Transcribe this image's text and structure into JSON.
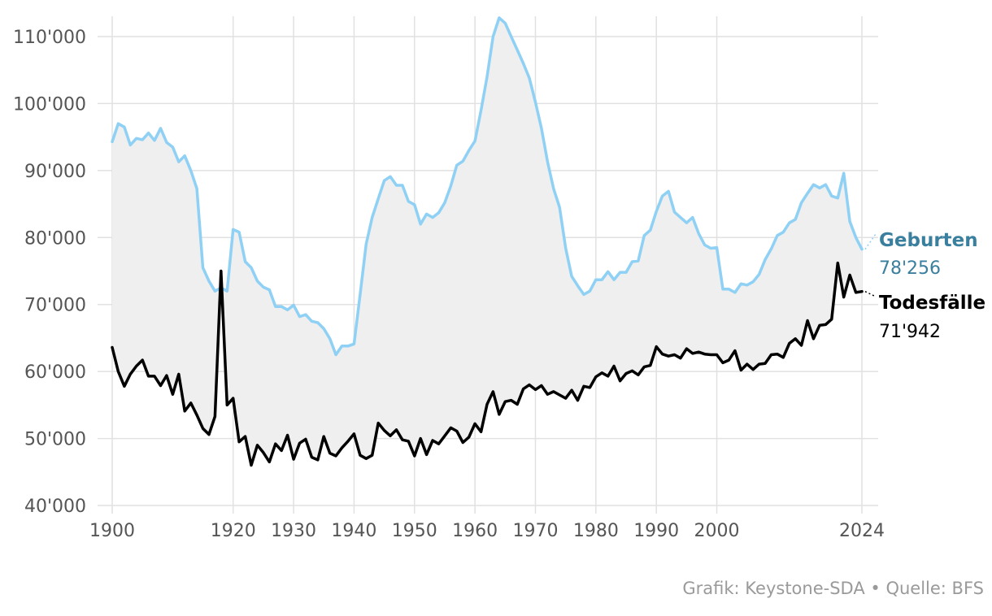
{
  "chart_data": {
    "type": "line",
    "ylim": [
      40000,
      110000
    ],
    "xlim": [
      1900,
      2024
    ],
    "y_ticks": [
      40000,
      50000,
      60000,
      70000,
      80000,
      90000,
      100000,
      110000
    ],
    "y_tick_labels": [
      "40'000",
      "50'000",
      "60'000",
      "70'000",
      "80'000",
      "90'000",
      "100'000",
      "110'000"
    ],
    "x_ticks": [
      1900,
      1920,
      1930,
      1940,
      1950,
      1960,
      1970,
      1980,
      1990,
      2000,
      2024
    ],
    "x_tick_labels": [
      "1900",
      "1920",
      "1930",
      "1940",
      "1950",
      "1960",
      "1970",
      "1980",
      "1990",
      "2000",
      "2024"
    ],
    "grid": true,
    "fill_between_series": true,
    "series": [
      {
        "name": "Geburten",
        "value_label": "78'256",
        "color": "#8fd0f5",
        "label_color": "#3a7f9e",
        "x": [
          1900,
          1901,
          1902,
          1903,
          1904,
          1905,
          1906,
          1907,
          1908,
          1909,
          1910,
          1911,
          1912,
          1913,
          1914,
          1915,
          1916,
          1917,
          1918,
          1919,
          1920,
          1921,
          1922,
          1923,
          1924,
          1925,
          1926,
          1927,
          1928,
          1929,
          1930,
          1931,
          1932,
          1933,
          1934,
          1935,
          1936,
          1937,
          1938,
          1939,
          1940,
          1941,
          1942,
          1943,
          1944,
          1945,
          1946,
          1947,
          1948,
          1949,
          1950,
          1951,
          1952,
          1953,
          1954,
          1955,
          1956,
          1957,
          1958,
          1959,
          1960,
          1961,
          1962,
          1963,
          1964,
          1965,
          1966,
          1967,
          1968,
          1969,
          1970,
          1971,
          1972,
          1973,
          1974,
          1975,
          1976,
          1977,
          1978,
          1979,
          1980,
          1981,
          1982,
          1983,
          1984,
          1985,
          1986,
          1987,
          1988,
          1989,
          1990,
          1991,
          1992,
          1993,
          1994,
          1995,
          1996,
          1997,
          1998,
          1999,
          2000,
          2001,
          2002,
          2003,
          2004,
          2005,
          2006,
          2007,
          2008,
          2009,
          2010,
          2011,
          2012,
          2013,
          2014,
          2015,
          2016,
          2017,
          2018,
          2019,
          2020,
          2021,
          2022,
          2023,
          2024
        ],
        "values": [
          94300,
          97000,
          96500,
          93800,
          94800,
          94600,
          95600,
          94500,
          96300,
          94200,
          93500,
          91300,
          92200,
          90000,
          87300,
          75500,
          73500,
          72000,
          72500,
          72000,
          81200,
          80800,
          76400,
          75500,
          73500,
          72600,
          72200,
          69700,
          69700,
          69200,
          69900,
          68200,
          68500,
          67500,
          67300,
          66400,
          64900,
          62500,
          63800,
          63800,
          64100,
          71500,
          79000,
          83000,
          85800,
          88500,
          89100,
          87800,
          87800,
          85400,
          84900,
          82000,
          83500,
          83000,
          83700,
          85200,
          87700,
          90800,
          91400,
          93000,
          94400,
          99000,
          104000,
          110000,
          112800,
          112000,
          110000,
          108000,
          106000,
          103800,
          100200,
          96300,
          91300,
          87300,
          84500,
          78400,
          74200,
          72800,
          71500,
          72000,
          73700,
          73700,
          74900,
          73700,
          74800,
          74800,
          76400,
          76500,
          80300,
          81100,
          83900,
          86200,
          86900,
          83800,
          83000,
          82200,
          83000,
          80600,
          78900,
          78400,
          78500,
          72300,
          72300,
          71800,
          73100,
          72900,
          73400,
          74500,
          76700,
          78300,
          80300,
          80800,
          82200,
          82700,
          85200,
          86600,
          87900,
          87400,
          87900,
          86200,
          85900,
          89600,
          82400,
          80000,
          78256
        ]
      },
      {
        "name": "Todesfälle",
        "value_label": "71'942",
        "color": "#000000",
        "label_color": "#000000",
        "x": [
          1900,
          1901,
          1902,
          1903,
          1904,
          1905,
          1906,
          1907,
          1908,
          1909,
          1910,
          1911,
          1912,
          1913,
          1914,
          1915,
          1916,
          1917,
          1918,
          1919,
          1920,
          1921,
          1922,
          1923,
          1924,
          1925,
          1926,
          1927,
          1928,
          1929,
          1930,
          1931,
          1932,
          1933,
          1934,
          1935,
          1936,
          1937,
          1938,
          1939,
          1940,
          1941,
          1942,
          1943,
          1944,
          1945,
          1946,
          1947,
          1948,
          1949,
          1950,
          1951,
          1952,
          1953,
          1954,
          1955,
          1956,
          1957,
          1958,
          1959,
          1960,
          1961,
          1962,
          1963,
          1964,
          1965,
          1966,
          1967,
          1968,
          1969,
          1970,
          1971,
          1972,
          1973,
          1974,
          1975,
          1976,
          1977,
          1978,
          1979,
          1980,
          1981,
          1982,
          1983,
          1984,
          1985,
          1986,
          1987,
          1988,
          1989,
          1990,
          1991,
          1992,
          1993,
          1994,
          1995,
          1996,
          1997,
          1998,
          1999,
          2000,
          2001,
          2002,
          2003,
          2004,
          2005,
          2006,
          2007,
          2008,
          2009,
          2010,
          2011,
          2012,
          2013,
          2014,
          2015,
          2016,
          2017,
          2018,
          2019,
          2020,
          2021,
          2022,
          2023,
          2024
        ],
        "values": [
          63600,
          60000,
          57800,
          59600,
          60800,
          61700,
          59300,
          59300,
          57900,
          59400,
          56600,
          59600,
          54100,
          55300,
          53500,
          51500,
          50600,
          53300,
          75000,
          55000,
          56000,
          49500,
          50300,
          46000,
          49000,
          47900,
          46500,
          49200,
          48200,
          50500,
          46900,
          49300,
          49900,
          47200,
          46800,
          50300,
          47800,
          47400,
          48600,
          49600,
          50700,
          47500,
          47000,
          47500,
          52300,
          51200,
          50400,
          51300,
          49800,
          49600,
          47400,
          50000,
          47600,
          49700,
          49200,
          50400,
          51600,
          51100,
          49400,
          50200,
          52200,
          51000,
          55100,
          57000,
          53600,
          55500,
          55700,
          55100,
          57400,
          58000,
          57300,
          57900,
          56600,
          57000,
          56500,
          56000,
          57200,
          55700,
          57800,
          57600,
          59200,
          59800,
          59300,
          60800,
          58600,
          59700,
          60100,
          59500,
          60700,
          60900,
          63700,
          62600,
          62300,
          62500,
          62000,
          63400,
          62700,
          62900,
          62600,
          62500,
          62500,
          61300,
          61700,
          63100,
          60200,
          61100,
          60300,
          61100,
          61200,
          62500,
          62600,
          62100,
          64200,
          64900,
          63900,
          67600,
          64900,
          66900,
          67000,
          67800,
          76200,
          71100,
          74400,
          71800,
          71942
        ]
      }
    ]
  },
  "source": "Grafik: Keystone-SDA • Quelle: BFS"
}
